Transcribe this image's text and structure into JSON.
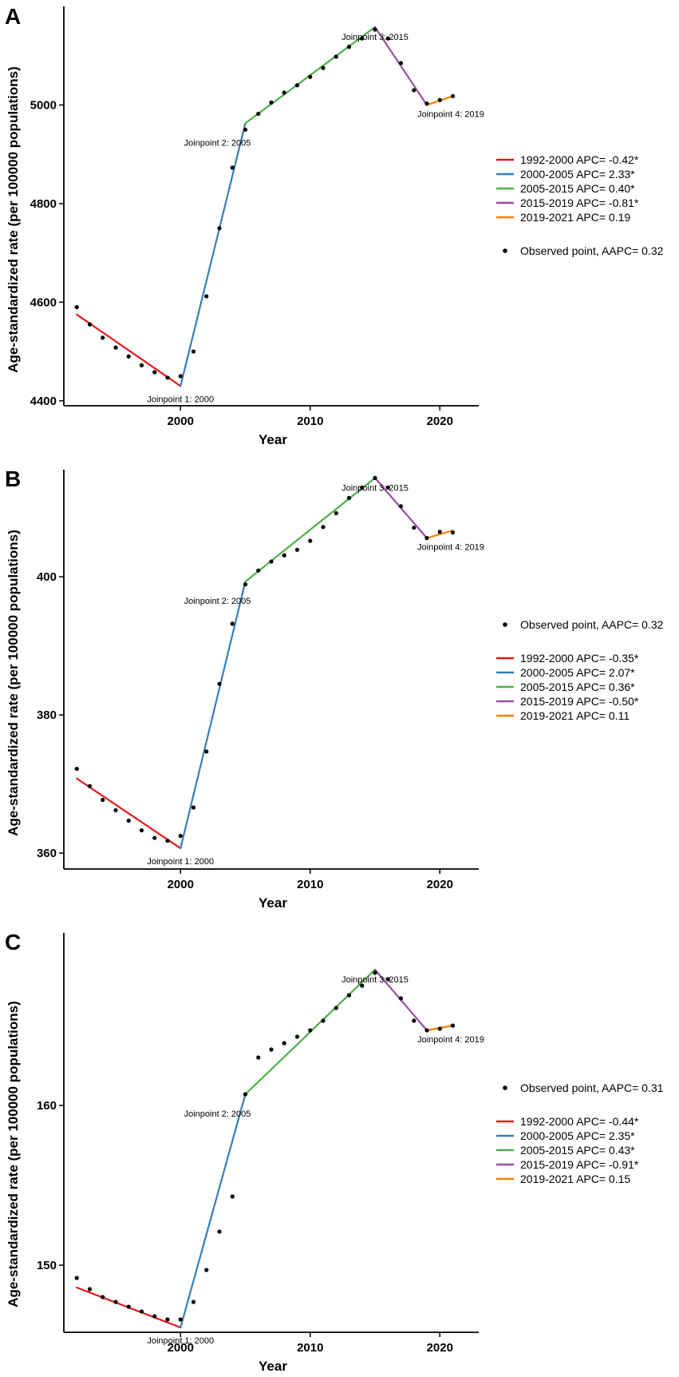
{
  "chart_data": [
    {
      "panel": "A",
      "type": "line",
      "xlabel": "Year",
      "ylabel": "Age-standardized rate (per 100000 populations)",
      "xticks": [
        2000,
        2010,
        2020
      ],
      "yticks": [
        4400,
        4600,
        4800,
        5000
      ],
      "xlim": [
        1991,
        2023
      ],
      "ylim": [
        4390,
        5200
      ],
      "observed": {
        "x": [
          1992,
          1993,
          1994,
          1995,
          1996,
          1997,
          1998,
          1999,
          2000,
          2001,
          2002,
          2003,
          2004,
          2005,
          2006,
          2007,
          2008,
          2009,
          2010,
          2011,
          2012,
          2013,
          2014,
          2015,
          2016,
          2017,
          2018,
          2019,
          2020,
          2021
        ],
        "y": [
          4590,
          4555,
          4528,
          4508,
          4490,
          4472,
          4458,
          4447,
          4450,
          4500,
          4612,
          4750,
          4873,
          4950,
          4982,
          5005,
          5025,
          5040,
          5057,
          5075,
          5098,
          5118,
          5135,
          5153,
          5135,
          5085,
          5030,
          5003,
          5010,
          5018
        ]
      },
      "segments": [
        {
          "name": "1992-2000 APC= -0.42*",
          "color": "#e41a1c",
          "x": [
            1992,
            2000
          ],
          "y": [
            4575,
            4430
          ]
        },
        {
          "name": "2000-2005 APC= 2.33*",
          "color": "#377eb8",
          "x": [
            2000,
            2005
          ],
          "y": [
            4430,
            4963
          ]
        },
        {
          "name": "2005-2015 APC= 0.40*",
          "color": "#4daf4a",
          "x": [
            2005,
            2015
          ],
          "y": [
            4963,
            5158
          ]
        },
        {
          "name": "2015-2019 APC= -0.81*",
          "color": "#984ea3",
          "x": [
            2015,
            2019
          ],
          "y": [
            5158,
            5000
          ]
        },
        {
          "name": "2019-2021 APC= 0.19",
          "color": "#ff7f00",
          "x": [
            2019,
            2021
          ],
          "y": [
            5000,
            5018
          ]
        }
      ],
      "joinpoints": [
        {
          "label": "Joinpoint 1: 2000",
          "x": 2000,
          "y": 4430
        },
        {
          "label": "Joinpoint 2: 2005",
          "x": 2005,
          "y": 4963
        },
        {
          "label": "Joinpoint 3: 2015",
          "x": 2015,
          "y": 5158
        },
        {
          "label": "Joinpoint 4: 2019",
          "x": 2019,
          "y": 5000
        }
      ],
      "observed_label": "Observed point, AAPC= 0.32",
      "legend_order": "segments-first"
    },
    {
      "panel": "B",
      "type": "line",
      "xlabel": "Year",
      "ylabel": "Age-standardized rate (per 100000 populations)",
      "xticks": [
        2000,
        2010,
        2020
      ],
      "yticks": [
        360,
        380,
        400
      ],
      "xlim": [
        1991,
        2023
      ],
      "ylim": [
        357.7,
        415.5
      ],
      "observed": {
        "x": [
          1992,
          1993,
          1994,
          1995,
          1996,
          1997,
          1998,
          1999,
          2000,
          2001,
          2002,
          2003,
          2004,
          2005,
          2006,
          2007,
          2008,
          2009,
          2010,
          2011,
          2012,
          2013,
          2014,
          2015,
          2016,
          2017,
          2018,
          2019,
          2020,
          2021
        ],
        "y": [
          372.2,
          369.7,
          367.7,
          366.2,
          364.7,
          363.3,
          362.2,
          361.8,
          362.5,
          366.6,
          374.7,
          384.5,
          393.2,
          398.9,
          400.9,
          402.2,
          403.1,
          403.9,
          405.2,
          407.2,
          409.2,
          411.4,
          412.9,
          414.3,
          412.9,
          410.2,
          407.1,
          405.6,
          406.5,
          406.4
        ]
      },
      "segments": [
        {
          "name": "1992-2000 APC= -0.35*",
          "color": "#e41a1c",
          "x": [
            1992,
            2000
          ],
          "y": [
            370.8,
            360.7
          ]
        },
        {
          "name": "2000-2005 APC= 2.07*",
          "color": "#377eb8",
          "x": [
            2000,
            2005
          ],
          "y": [
            360.7,
            399.3
          ]
        },
        {
          "name": "2005-2015 APC= 0.36*",
          "color": "#4daf4a",
          "x": [
            2005,
            2015
          ],
          "y": [
            399.3,
            414.3
          ]
        },
        {
          "name": "2015-2019 APC= -0.50*",
          "color": "#984ea3",
          "x": [
            2015,
            2019
          ],
          "y": [
            414.3,
            405.6
          ]
        },
        {
          "name": "2019-2021 APC= 0.11",
          "color": "#ff7f00",
          "x": [
            2019,
            2021
          ],
          "y": [
            405.6,
            406.7
          ]
        }
      ],
      "joinpoints": [
        {
          "label": "Joinpoint 1: 2000",
          "x": 2000,
          "y": 360.7
        },
        {
          "label": "Joinpoint 2: 2005",
          "x": 2005,
          "y": 399.3
        },
        {
          "label": "Joinpoint 3: 2015",
          "x": 2015,
          "y": 414.3
        },
        {
          "label": "Joinpoint 4: 2019",
          "x": 2019,
          "y": 405.6
        }
      ],
      "observed_label": "Observed point, AAPC= 0.32",
      "legend_order": "observed-first"
    },
    {
      "panel": "C",
      "type": "line",
      "xlabel": "Year",
      "ylabel": "Age-standardized rate (per 100000 populations)",
      "xticks": [
        2000,
        2010,
        2020
      ],
      "yticks": [
        150,
        160
      ],
      "xlim": [
        1991,
        2023
      ],
      "ylim": [
        145.8,
        170.8
      ],
      "observed": {
        "x": [
          1992,
          1993,
          1994,
          1995,
          1996,
          1997,
          1998,
          1999,
          2000,
          2001,
          2002,
          2003,
          2004,
          2005,
          2006,
          2007,
          2008,
          2009,
          2010,
          2011,
          2012,
          2013,
          2014,
          2015,
          2016,
          2017,
          2018,
          2019,
          2020,
          2021
        ],
        "y": [
          149.2,
          148.5,
          148.0,
          147.7,
          147.4,
          147.1,
          146.8,
          146.6,
          146.6,
          147.7,
          149.7,
          152.1,
          154.3,
          160.7,
          163.0,
          163.5,
          163.9,
          164.3,
          164.7,
          165.3,
          166.1,
          166.9,
          167.5,
          168.3,
          167.9,
          166.7,
          165.3,
          164.7,
          164.8,
          165.0
        ]
      },
      "segments": [
        {
          "name": "1992-2000 APC= -0.44*",
          "color": "#e41a1c",
          "x": [
            1992,
            2000
          ],
          "y": [
            148.6,
            146.1
          ]
        },
        {
          "name": "2000-2005 APC= 2.35*",
          "color": "#377eb8",
          "x": [
            2000,
            2005
          ],
          "y": [
            146.1,
            160.7
          ]
        },
        {
          "name": "2005-2015 APC= 0.43*",
          "color": "#4daf4a",
          "x": [
            2005,
            2015
          ],
          "y": [
            160.7,
            168.5
          ]
        },
        {
          "name": "2015-2019 APC= -0.91*",
          "color": "#984ea3",
          "x": [
            2015,
            2019
          ],
          "y": [
            168.5,
            164.7
          ]
        },
        {
          "name": "2019-2021 APC= 0.15",
          "color": "#ff7f00",
          "x": [
            2019,
            2021
          ],
          "y": [
            164.7,
            165.0
          ]
        }
      ],
      "joinpoints": [
        {
          "label": "Joinpoint 1: 2000",
          "x": 2000,
          "y": 146.1
        },
        {
          "label": "Joinpoint 2: 2005",
          "x": 2005,
          "y": 160.7
        },
        {
          "label": "Joinpoint 3: 2015",
          "x": 2015,
          "y": 168.5
        },
        {
          "label": "Joinpoint 4: 2019",
          "x": 2019,
          "y": 164.7
        }
      ],
      "observed_label": "Observed point, AAPC= 0.31",
      "legend_order": "observed-first"
    }
  ]
}
